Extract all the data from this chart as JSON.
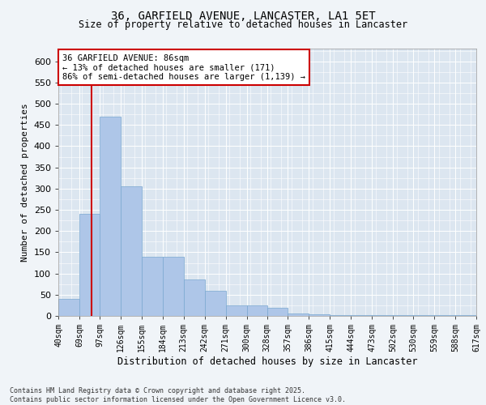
{
  "title_line1": "36, GARFIELD AVENUE, LANCASTER, LA1 5ET",
  "title_line2": "Size of property relative to detached houses in Lancaster",
  "xlabel": "Distribution of detached houses by size in Lancaster",
  "ylabel": "Number of detached properties",
  "bar_color": "#aec6e8",
  "bar_edge_color": "#7aa8d0",
  "vline_color": "#cc0000",
  "vline_x": 86,
  "background_color": "#dce6f0",
  "grid_color": "#ffffff",
  "annotation_text": "36 GARFIELD AVENUE: 86sqm\n← 13% of detached houses are smaller (171)\n86% of semi-detached houses are larger (1,139) →",
  "annotation_box_color": "#ffffff",
  "annotation_box_edge_color": "#cc0000",
  "footer_text": "Contains HM Land Registry data © Crown copyright and database right 2025.\nContains public sector information licensed under the Open Government Licence v3.0.",
  "bin_edges": [
    40,
    69,
    97,
    126,
    155,
    184,
    213,
    242,
    271,
    300,
    328,
    357,
    386,
    415,
    444,
    473,
    502,
    530,
    559,
    588,
    617
  ],
  "bar_heights": [
    40,
    240,
    470,
    305,
    140,
    140,
    85,
    60,
    25,
    25,
    20,
    5,
    3,
    2,
    1,
    1,
    1,
    1,
    1,
    1
  ],
  "ylim": [
    0,
    630
  ],
  "yticks": [
    0,
    50,
    100,
    150,
    200,
    250,
    300,
    350,
    400,
    450,
    500,
    550,
    600
  ],
  "tick_labels": [
    "40sqm",
    "69sqm",
    "97sqm",
    "126sqm",
    "155sqm",
    "184sqm",
    "213sqm",
    "242sqm",
    "271sqm",
    "300sqm",
    "328sqm",
    "357sqm",
    "386sqm",
    "415sqm",
    "444sqm",
    "473sqm",
    "502sqm",
    "530sqm",
    "559sqm",
    "588sqm",
    "617sqm"
  ]
}
